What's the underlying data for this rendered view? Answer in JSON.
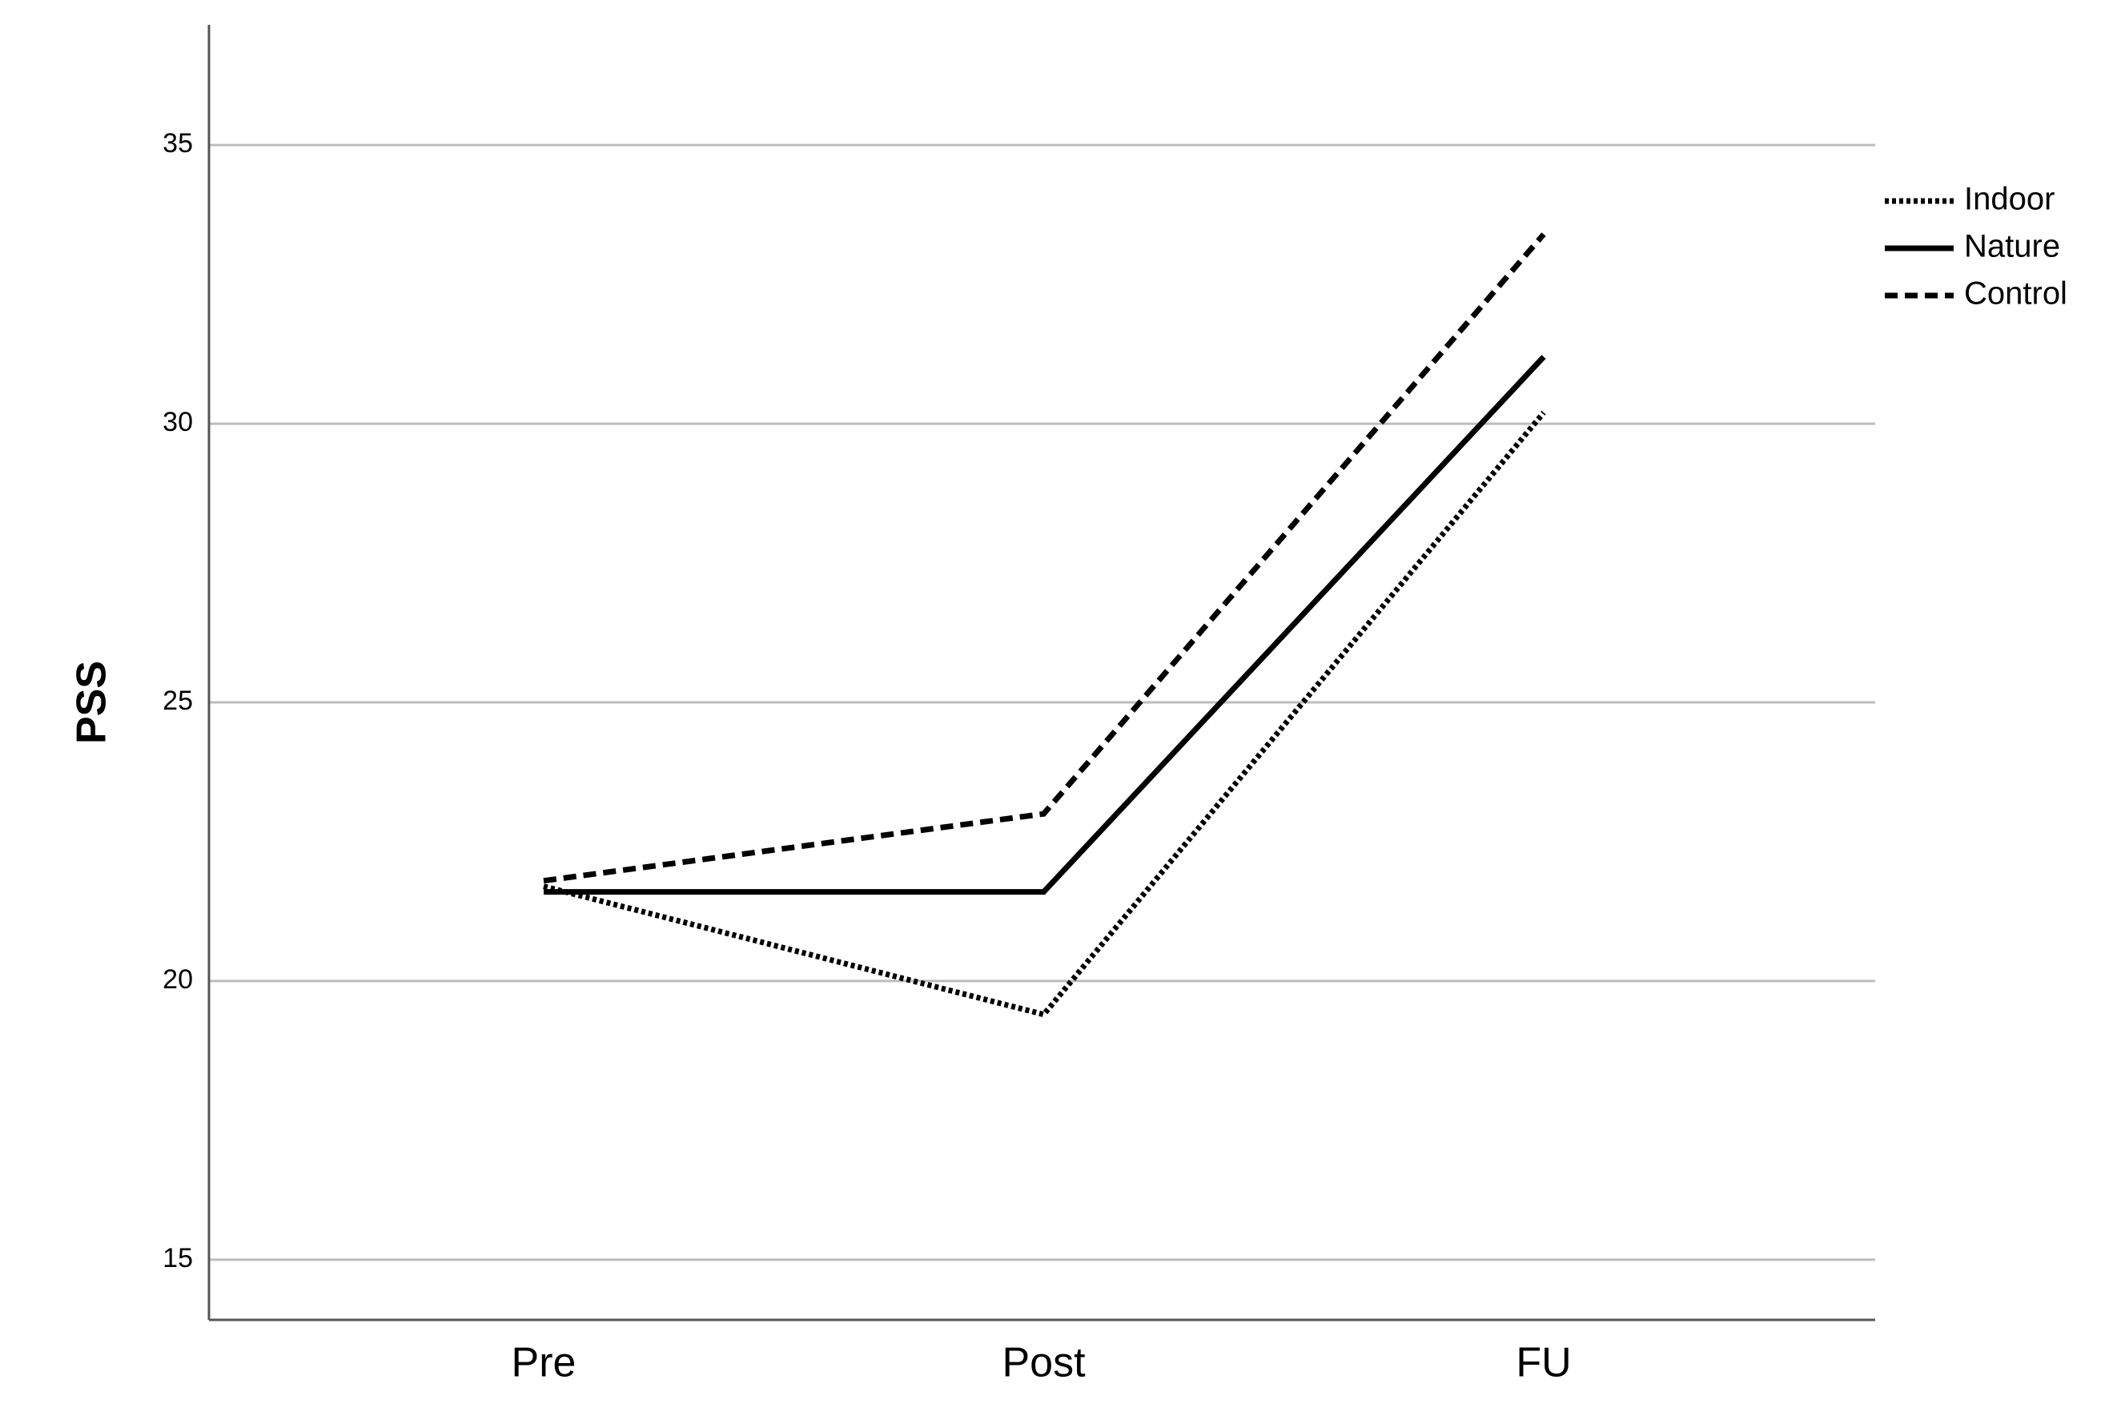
{
  "chart_data": {
    "type": "line",
    "y_label": "PSS",
    "categories": [
      "Pre",
      "Post",
      "FU"
    ],
    "series": [
      {
        "name": "Indoor",
        "color": "#000000",
        "dash": "dotted",
        "values": [
          21.7,
          19.4,
          30.2
        ]
      },
      {
        "name": "Nature",
        "color": "#000000",
        "dash": "solid",
        "values": [
          21.6,
          21.6,
          31.2
        ]
      },
      {
        "name": "Control",
        "color": "#000000",
        "dash": "dashed",
        "values": [
          21.8,
          23.0,
          33.4
        ]
      }
    ],
    "ylim": [
      13.92,
      36.08
    ],
    "yticks": [
      15,
      20,
      25,
      30,
      35
    ],
    "grid": true,
    "legend": "upper right"
  }
}
